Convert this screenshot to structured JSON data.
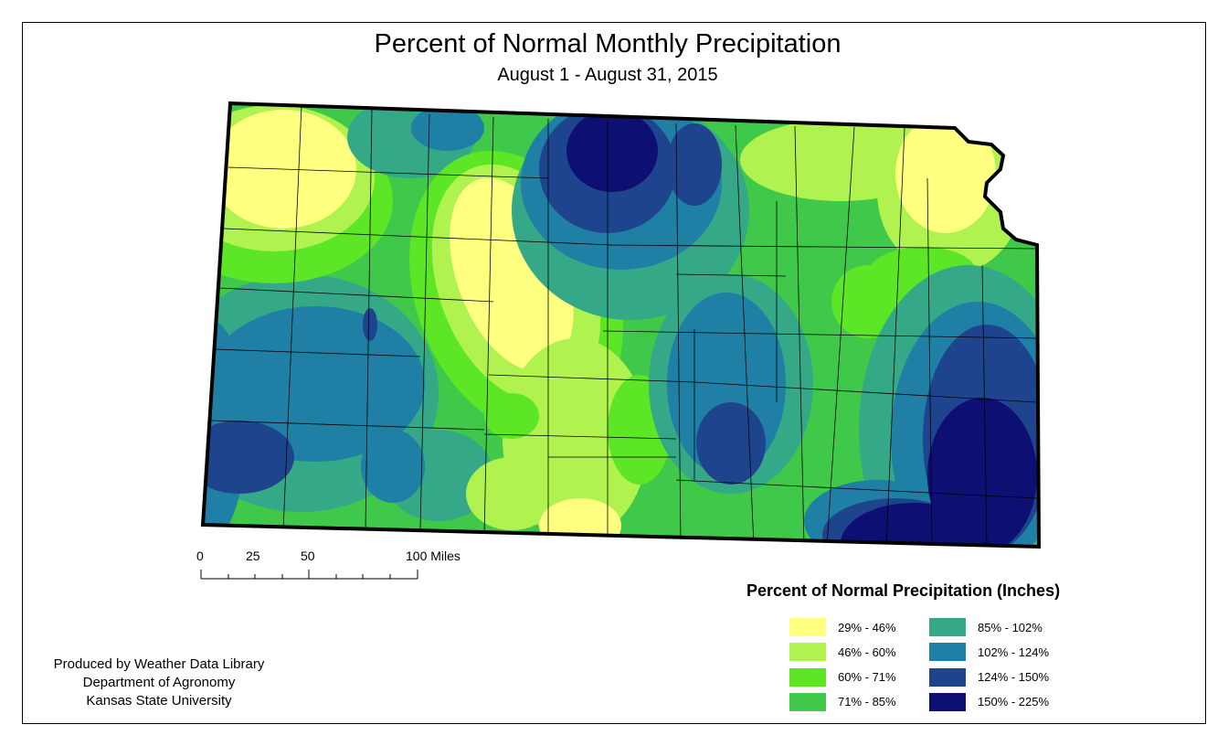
{
  "title": "Percent of Normal Monthly Precipitation",
  "subtitle": "August 1 - August 31, 2015",
  "scale_bar": {
    "labels": [
      "0",
      "25",
      "50",
      "100 Miles"
    ]
  },
  "legend": {
    "title": "Percent of Normal Precipitation (Inches)",
    "items": [
      {
        "label": "29% - 46%",
        "color": "#ffff80"
      },
      {
        "label": "46% - 60%",
        "color": "#b0f250"
      },
      {
        "label": "60% - 71%",
        "color": "#5ce626"
      },
      {
        "label": "71% - 85%",
        "color": "#40c84a"
      },
      {
        "label": "85% - 102%",
        "color": "#35a888"
      },
      {
        "label": "102% - 124%",
        "color": "#1f7fa5"
      },
      {
        "label": "124% - 150%",
        "color": "#1f448e"
      },
      {
        "label": "150% - 225%",
        "color": "#0e0f73"
      }
    ]
  },
  "credits": [
    "Produced by Weather Data Library",
    "Department of Agronomy",
    "Kansas State University"
  ]
}
